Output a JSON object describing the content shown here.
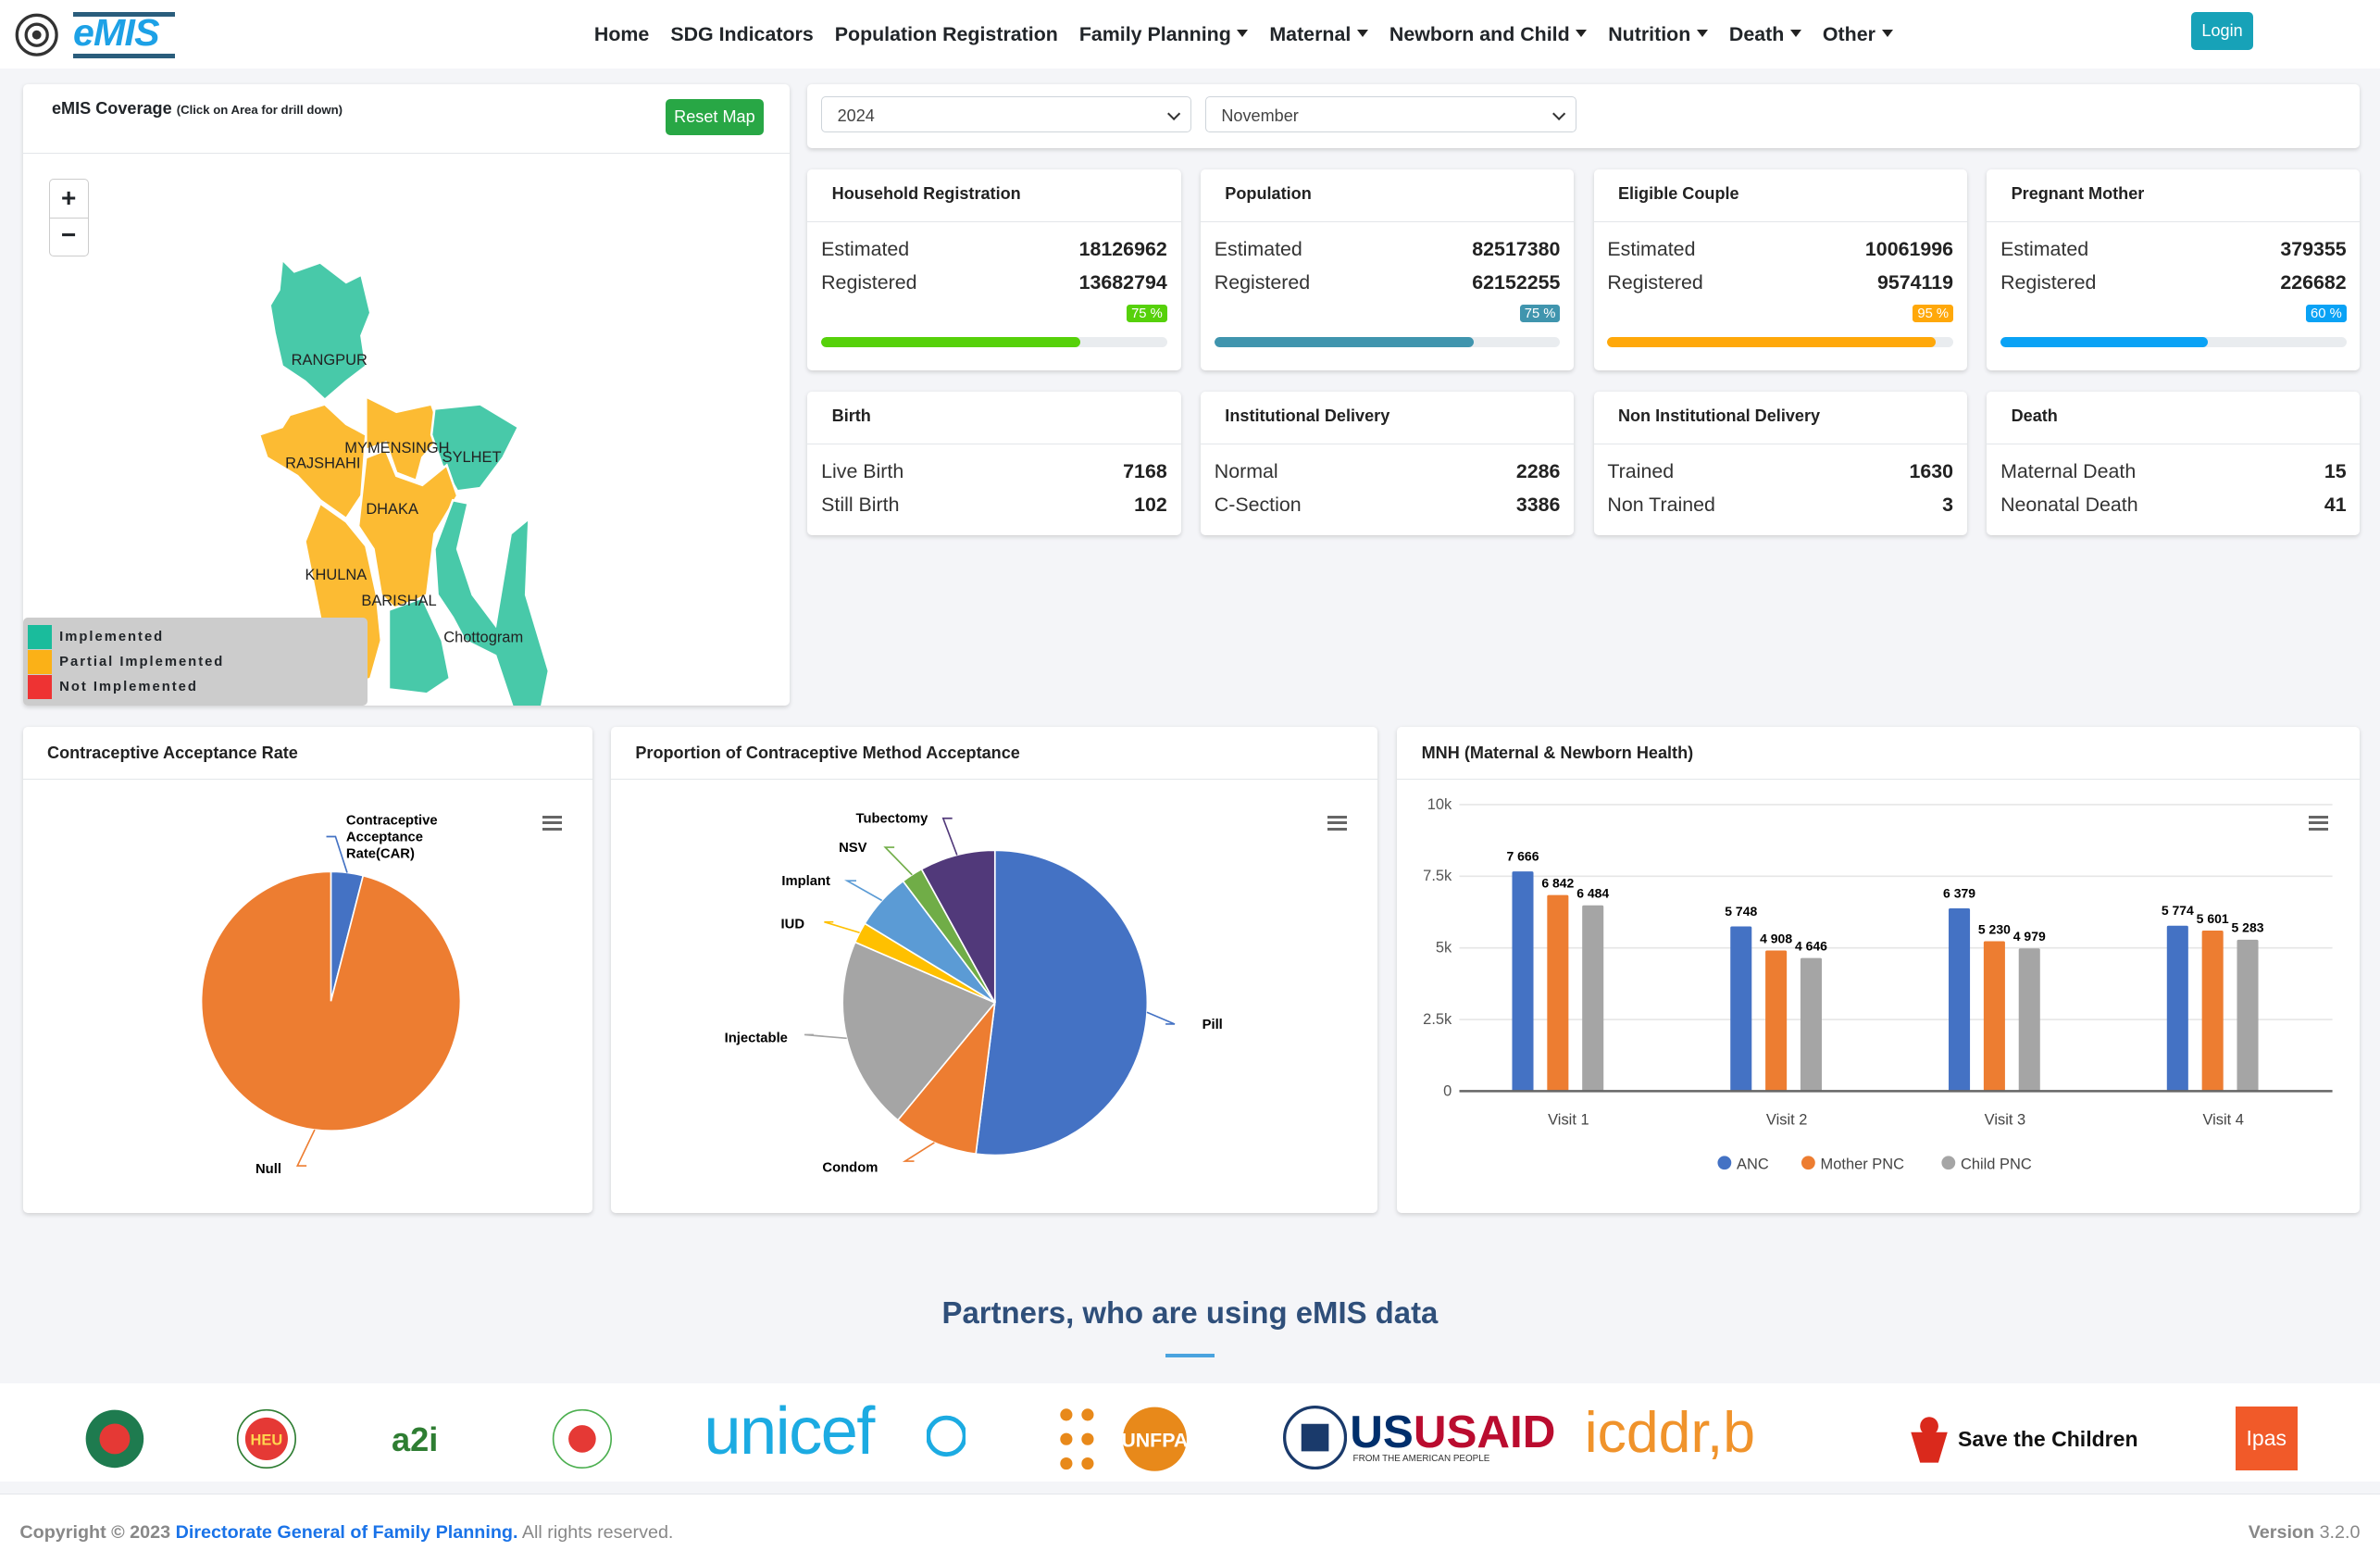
{
  "header": {
    "logo_text": "eMIS",
    "nav": [
      {
        "label": "Home",
        "dropdown": false
      },
      {
        "label": "SDG Indicators",
        "dropdown": false
      },
      {
        "label": "Population Registration",
        "dropdown": false
      },
      {
        "label": "Family Planning",
        "dropdown": true
      },
      {
        "label": "Maternal",
        "dropdown": true
      },
      {
        "label": "Newborn and Child",
        "dropdown": true
      },
      {
        "label": "Nutrition",
        "dropdown": true
      },
      {
        "label": "Death",
        "dropdown": true
      },
      {
        "label": "Other",
        "dropdown": true
      }
    ],
    "login": "Login"
  },
  "map": {
    "title": "eMIS Coverage",
    "subtitle": "(Click on Area for drill down)",
    "reset": "Reset Map",
    "zoom_in": "+",
    "zoom_out": "−",
    "regions": [
      {
        "name": "RANGPUR",
        "status": "Implemented"
      },
      {
        "name": "RAJSHAHI",
        "status": "Partial Implemented"
      },
      {
        "name": "MYMENSINGH",
        "status": "Partial Implemented"
      },
      {
        "name": "SYLHET",
        "status": "Implemented"
      },
      {
        "name": "DHAKA",
        "status": "Partial Implemented"
      },
      {
        "name": "KHULNA",
        "status": "Partial Implemented"
      },
      {
        "name": "BARISHAL",
        "status": "Implemented"
      },
      {
        "name": "Chottogram",
        "status": "Implemented"
      }
    ],
    "legend": [
      {
        "label": "Implemented",
        "color": "#1abc9c"
      },
      {
        "label": "Partial Implemented",
        "color": "#fbb117"
      },
      {
        "label": "Not Implemented",
        "color": "#ee3333"
      }
    ]
  },
  "filters": {
    "year": "2024",
    "month": "November"
  },
  "stats": [
    {
      "title": "Household Registration",
      "rows": [
        {
          "label": "Estimated",
          "value": "18126962"
        },
        {
          "label": "Registered",
          "value": "13682794"
        }
      ],
      "percent": 75,
      "badge": "75 %",
      "color": "#56d10a"
    },
    {
      "title": "Population",
      "rows": [
        {
          "label": "Estimated",
          "value": "82517380"
        },
        {
          "label": "Registered",
          "value": "62152255"
        }
      ],
      "percent": 75,
      "badge": "75 %",
      "color": "#4095ae"
    },
    {
      "title": "Eligible Couple",
      "rows": [
        {
          "label": "Estimated",
          "value": "10061996"
        },
        {
          "label": "Registered",
          "value": "9574119"
        }
      ],
      "percent": 95,
      "badge": "95 %",
      "color": "#ffa80a"
    },
    {
      "title": "Pregnant Mother",
      "rows": [
        {
          "label": "Estimated",
          "value": "379355"
        },
        {
          "label": "Registered",
          "value": "226682"
        }
      ],
      "percent": 60,
      "badge": "60 %",
      "color": "#0aa2f5"
    },
    {
      "title": "Birth",
      "rows": [
        {
          "label": "Live Birth",
          "value": "7168"
        },
        {
          "label": "Still Birth",
          "value": "102"
        }
      ]
    },
    {
      "title": "Institutional Delivery",
      "rows": [
        {
          "label": "Normal",
          "value": "2286"
        },
        {
          "label": "C-Section",
          "value": "3386"
        }
      ]
    },
    {
      "title": "Non Institutional Delivery",
      "rows": [
        {
          "label": "Trained",
          "value": "1630"
        },
        {
          "label": "Non Trained",
          "value": "3"
        }
      ]
    },
    {
      "title": "Death",
      "rows": [
        {
          "label": "Maternal Death",
          "value": "15"
        },
        {
          "label": "Neonatal Death",
          "value": "41"
        }
      ]
    }
  ],
  "chart_data": [
    {
      "type": "pie",
      "title": "Contraceptive Acceptance Rate",
      "labels": [
        "Contraceptive Acceptance Rate(CAR)",
        "Null"
      ],
      "values": [
        4,
        96
      ],
      "colors": [
        "#4472c4",
        "#ed7d31"
      ]
    },
    {
      "type": "pie",
      "title": "Proportion of Contraceptive Method Acceptance",
      "labels": [
        "Pill",
        "Condom",
        "Injectable",
        "IUD",
        "Implant",
        "NSV",
        "Tubectomy"
      ],
      "values": [
        52,
        9,
        20.5,
        2.2,
        6,
        2.3,
        8
      ],
      "colors": [
        "#4472c4",
        "#ed7d31",
        "#a5a5a5",
        "#ffc000",
        "#5b9bd5",
        "#70ad47",
        "#51397a"
      ]
    },
    {
      "type": "bar",
      "title": "MNH (Maternal & Newborn Health)",
      "categories": [
        "Visit 1",
        "Visit 2",
        "Visit 3",
        "Visit 4"
      ],
      "series": [
        {
          "name": "ANC",
          "values": [
            7666,
            5748,
            6379,
            5774
          ],
          "labels": [
            "7 666",
            "5 748",
            "6 379",
            "5 774"
          ],
          "color": "#4472c4"
        },
        {
          "name": "Mother PNC",
          "values": [
            6842,
            4908,
            5230,
            5601
          ],
          "labels": [
            "6 842",
            "4 908",
            "5 230",
            "5 601"
          ],
          "color": "#ed7d31"
        },
        {
          "name": "Child PNC",
          "values": [
            6484,
            4646,
            4979,
            5283
          ],
          "labels": [
            "6 484",
            "4 646",
            "4 979",
            "5 283"
          ],
          "color": "#a5a5a5"
        }
      ],
      "yticks": [
        "0",
        "2.5k",
        "5k",
        "7.5k",
        "10k"
      ],
      "ylim": [
        0,
        10000
      ],
      "grid": true,
      "legend": "bottom"
    }
  ],
  "partners": {
    "title": "Partners, who are using eMIS data",
    "logos": [
      "HEU",
      "a2i",
      "unicef",
      "UNFPA",
      "USAID",
      "FROM THE AMERICAN PEOPLE",
      "icddr,b",
      "Save the Children",
      "Ipas"
    ]
  },
  "footer": {
    "copyright": "Copyright © 2023",
    "org": "Directorate General of Family Planning.",
    "rights": "All rights reserved.",
    "version_label": "Version",
    "version": "3.2.0"
  }
}
